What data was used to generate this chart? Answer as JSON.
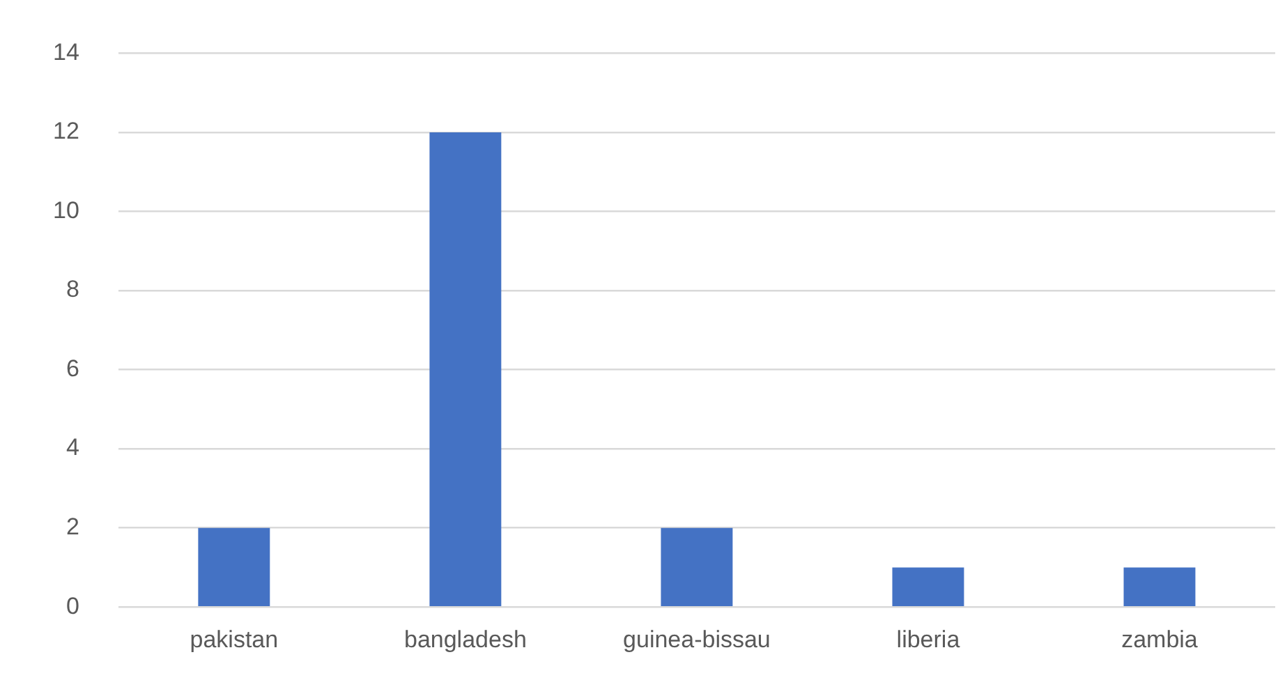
{
  "chart_data": {
    "type": "bar",
    "categories": [
      "pakistan",
      "bangladesh",
      "guinea-bissau",
      "liberia",
      "zambia"
    ],
    "values": [
      2,
      12,
      2,
      1,
      1
    ],
    "color": "#4472c4",
    "ylim": [
      0,
      14
    ],
    "yticks": [
      0,
      2,
      4,
      6,
      8,
      10,
      12,
      14
    ],
    "grid": "y",
    "legend": false
  }
}
